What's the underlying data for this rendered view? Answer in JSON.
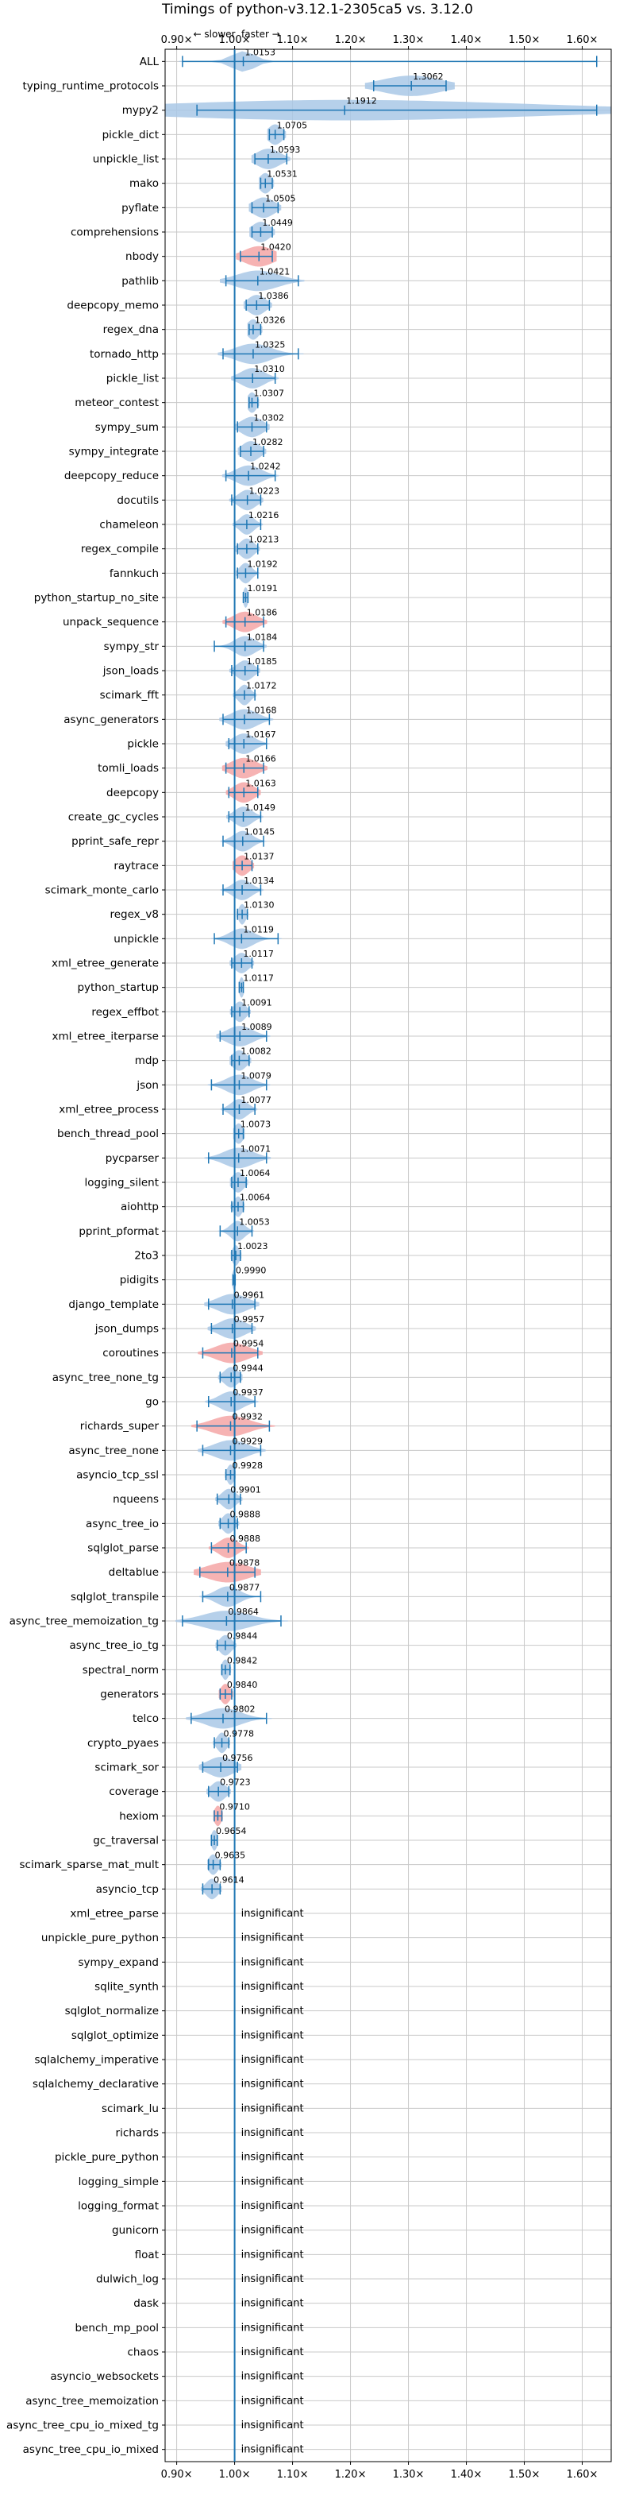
{
  "chart_data": {
    "type": "violin",
    "title": "Timings of python-v3.12.1-2305ca5 vs. 3.12.0",
    "xlabel": "",
    "ylabel": "",
    "xlim": [
      0.88,
      1.65
    ],
    "x_ticks": [
      "0.90×",
      "1.00×",
      "1.10×",
      "1.20×",
      "1.30×",
      "1.40×",
      "1.50×",
      "1.60×"
    ],
    "x_tick_values": [
      0.9,
      1.0,
      1.1,
      1.2,
      1.3,
      1.4,
      1.5,
      1.6
    ],
    "baseline": 1.0,
    "direction_labels": {
      "left": "← slower",
      "right": "faster →"
    },
    "grid": true,
    "colors": {
      "significant": "#a9c8e6",
      "regressed": "#f4a6a6",
      "whisker": "#1f77b4",
      "baseline": "#1f77b4",
      "grid": "#c8c8c8"
    },
    "benchmarks": [
      {
        "name": "ALL",
        "value": "1.0153",
        "mean": 1.015,
        "lo": 0.91,
        "hi": 1.625,
        "spread": 0.02,
        "color": "blue"
      },
      {
        "name": "typing_runtime_protocols",
        "value": "1.3062",
        "mean": 1.305,
        "lo": 1.24,
        "hi": 1.365,
        "spread": 0.05,
        "color": "blue"
      },
      {
        "name": "mypy2",
        "value": "1.1912",
        "mean": 1.19,
        "lo": 0.935,
        "hi": 1.625,
        "spread": 0.32,
        "color": "blue"
      },
      {
        "name": "pickle_dict",
        "value": "1.0705",
        "mean": 1.07,
        "lo": 1.06,
        "hi": 1.085,
        "spread": 0.012,
        "color": "blue"
      },
      {
        "name": "unpickle_list",
        "value": "1.0593",
        "mean": 1.058,
        "lo": 1.035,
        "hi": 1.09,
        "spread": 0.02,
        "color": "blue"
      },
      {
        "name": "mako",
        "value": "1.0531",
        "mean": 1.053,
        "lo": 1.045,
        "hi": 1.065,
        "spread": 0.01,
        "color": "blue"
      },
      {
        "name": "pyflate",
        "value": "1.0505",
        "mean": 1.05,
        "lo": 1.03,
        "hi": 1.075,
        "spread": 0.018,
        "color": "blue"
      },
      {
        "name": "comprehensions",
        "value": "1.0449",
        "mean": 1.045,
        "lo": 1.03,
        "hi": 1.065,
        "spread": 0.015,
        "color": "blue"
      },
      {
        "name": "nbody",
        "value": "1.0420",
        "mean": 1.042,
        "lo": 1.01,
        "hi": 1.065,
        "spread": 0.025,
        "color": "red"
      },
      {
        "name": "pathlib",
        "value": "1.0421",
        "mean": 1.04,
        "lo": 0.985,
        "hi": 1.11,
        "spread": 0.035,
        "color": "blue"
      },
      {
        "name": "deepcopy_memo",
        "value": "1.0386",
        "mean": 1.038,
        "lo": 1.02,
        "hi": 1.06,
        "spread": 0.015,
        "color": "blue"
      },
      {
        "name": "regex_dna",
        "value": "1.0326",
        "mean": 1.032,
        "lo": 1.025,
        "hi": 1.045,
        "spread": 0.01,
        "color": "blue"
      },
      {
        "name": "tornado_http",
        "value": "1.0325",
        "mean": 1.032,
        "lo": 0.98,
        "hi": 1.11,
        "spread": 0.03,
        "color": "blue"
      },
      {
        "name": "pickle_list",
        "value": "1.0310",
        "mean": 1.031,
        "lo": 1.0,
        "hi": 1.07,
        "spread": 0.02,
        "color": "blue"
      },
      {
        "name": "meteor_contest",
        "value": "1.0307",
        "mean": 1.03,
        "lo": 1.025,
        "hi": 1.04,
        "spread": 0.008,
        "color": "blue"
      },
      {
        "name": "sympy_sum",
        "value": "1.0302",
        "mean": 1.03,
        "lo": 1.005,
        "hi": 1.055,
        "spread": 0.018,
        "color": "blue"
      },
      {
        "name": "sympy_integrate",
        "value": "1.0282",
        "mean": 1.028,
        "lo": 1.01,
        "hi": 1.05,
        "spread": 0.015,
        "color": "blue"
      },
      {
        "name": "deepcopy_reduce",
        "value": "1.0242",
        "mean": 1.024,
        "lo": 0.985,
        "hi": 1.07,
        "spread": 0.022,
        "color": "blue"
      },
      {
        "name": "docutils",
        "value": "1.0223",
        "mean": 1.022,
        "lo": 0.995,
        "hi": 1.045,
        "spread": 0.015,
        "color": "blue"
      },
      {
        "name": "chameleon",
        "value": "1.0216",
        "mean": 1.021,
        "lo": 1.0,
        "hi": 1.045,
        "spread": 0.012,
        "color": "blue"
      },
      {
        "name": "regex_compile",
        "value": "1.0213",
        "mean": 1.021,
        "lo": 1.005,
        "hi": 1.04,
        "spread": 0.012,
        "color": "blue"
      },
      {
        "name": "fannkuch",
        "value": "1.0192",
        "mean": 1.019,
        "lo": 1.005,
        "hi": 1.04,
        "spread": 0.01,
        "color": "blue"
      },
      {
        "name": "python_startup_no_site",
        "value": "1.0191",
        "mean": 1.019,
        "lo": 1.015,
        "hi": 1.023,
        "spread": 0.004,
        "color": "blue"
      },
      {
        "name": "unpack_sequence",
        "value": "1.0186",
        "mean": 1.018,
        "lo": 0.985,
        "hi": 1.05,
        "spread": 0.02,
        "color": "red"
      },
      {
        "name": "sympy_str",
        "value": "1.0184",
        "mean": 1.018,
        "lo": 0.965,
        "hi": 1.05,
        "spread": 0.018,
        "color": "blue"
      },
      {
        "name": "json_loads",
        "value": "1.0185",
        "mean": 1.018,
        "lo": 0.995,
        "hi": 1.04,
        "spread": 0.014,
        "color": "blue"
      },
      {
        "name": "scimark_fft",
        "value": "1.0172",
        "mean": 1.017,
        "lo": 1.0,
        "hi": 1.035,
        "spread": 0.01,
        "color": "blue"
      },
      {
        "name": "async_generators",
        "value": "1.0168",
        "mean": 1.017,
        "lo": 0.98,
        "hi": 1.06,
        "spread": 0.022,
        "color": "blue"
      },
      {
        "name": "pickle",
        "value": "1.0167",
        "mean": 1.016,
        "lo": 0.99,
        "hi": 1.055,
        "spread": 0.018,
        "color": "blue"
      },
      {
        "name": "tomli_loads",
        "value": "1.0166",
        "mean": 1.016,
        "lo": 0.985,
        "hi": 1.05,
        "spread": 0.022,
        "color": "red"
      },
      {
        "name": "deepcopy",
        "value": "1.0163",
        "mean": 1.016,
        "lo": 0.99,
        "hi": 1.04,
        "spread": 0.017,
        "color": "red"
      },
      {
        "name": "create_gc_cycles",
        "value": "1.0149",
        "mean": 1.015,
        "lo": 0.99,
        "hi": 1.045,
        "spread": 0.015,
        "color": "blue"
      },
      {
        "name": "pprint_safe_repr",
        "value": "1.0145",
        "mean": 1.014,
        "lo": 0.98,
        "hi": 1.05,
        "spread": 0.016,
        "color": "blue"
      },
      {
        "name": "raytrace",
        "value": "1.0137",
        "mean": 1.013,
        "lo": 1.0,
        "hi": 1.03,
        "spread": 0.012,
        "color": "red"
      },
      {
        "name": "scimark_monte_carlo",
        "value": "1.0134",
        "mean": 1.013,
        "lo": 0.98,
        "hi": 1.045,
        "spread": 0.016,
        "color": "blue"
      },
      {
        "name": "regex_v8",
        "value": "1.0130",
        "mean": 1.013,
        "lo": 1.005,
        "hi": 1.022,
        "spread": 0.006,
        "color": "blue"
      },
      {
        "name": "unpickle",
        "value": "1.0119",
        "mean": 1.012,
        "lo": 0.965,
        "hi": 1.075,
        "spread": 0.02,
        "color": "blue"
      },
      {
        "name": "xml_etree_generate",
        "value": "1.0117",
        "mean": 1.012,
        "lo": 0.995,
        "hi": 1.03,
        "spread": 0.012,
        "color": "blue"
      },
      {
        "name": "python_startup",
        "value": "1.0117",
        "mean": 1.012,
        "lo": 1.008,
        "hi": 1.015,
        "spread": 0.004,
        "color": "blue"
      },
      {
        "name": "regex_effbot",
        "value": "1.0091",
        "mean": 1.009,
        "lo": 0.995,
        "hi": 1.025,
        "spread": 0.01,
        "color": "blue"
      },
      {
        "name": "xml_etree_iterparse",
        "value": "1.0089",
        "mean": 1.009,
        "lo": 0.975,
        "hi": 1.055,
        "spread": 0.022,
        "color": "blue"
      },
      {
        "name": "mdp",
        "value": "1.0082",
        "mean": 1.008,
        "lo": 0.995,
        "hi": 1.025,
        "spread": 0.012,
        "color": "blue"
      },
      {
        "name": "json",
        "value": "1.0079",
        "mean": 1.008,
        "lo": 0.96,
        "hi": 1.055,
        "spread": 0.022,
        "color": "blue"
      },
      {
        "name": "xml_etree_process",
        "value": "1.0077",
        "mean": 1.008,
        "lo": 0.98,
        "hi": 1.035,
        "spread": 0.014,
        "color": "blue"
      },
      {
        "name": "bench_thread_pool",
        "value": "1.0073",
        "mean": 1.007,
        "lo": 1.0,
        "hi": 1.015,
        "spread": 0.008,
        "color": "blue"
      },
      {
        "name": "pycparser",
        "value": "1.0071",
        "mean": 1.007,
        "lo": 0.955,
        "hi": 1.055,
        "spread": 0.025,
        "color": "blue"
      },
      {
        "name": "logging_silent",
        "value": "1.0064",
        "mean": 1.006,
        "lo": 0.995,
        "hi": 1.02,
        "spread": 0.01,
        "color": "blue"
      },
      {
        "name": "aiohttp",
        "value": "1.0064",
        "mean": 1.006,
        "lo": 0.995,
        "hi": 1.015,
        "spread": 0.007,
        "color": "blue"
      },
      {
        "name": "pprint_pformat",
        "value": "1.0053",
        "mean": 1.005,
        "lo": 0.975,
        "hi": 1.03,
        "spread": 0.012,
        "color": "blue"
      },
      {
        "name": "2to3",
        "value": "1.0023",
        "mean": 1.002,
        "lo": 0.995,
        "hi": 1.01,
        "spread": 0.006,
        "color": "blue"
      },
      {
        "name": "pidigits",
        "value": "0.9990",
        "mean": 0.999,
        "lo": 0.997,
        "hi": 1.001,
        "spread": 0.002,
        "color": "blue"
      },
      {
        "name": "django_template",
        "value": "0.9961",
        "mean": 0.996,
        "lo": 0.955,
        "hi": 1.035,
        "spread": 0.025,
        "color": "blue"
      },
      {
        "name": "json_dumps",
        "value": "0.9957",
        "mean": 0.996,
        "lo": 0.96,
        "hi": 1.03,
        "spread": 0.022,
        "color": "blue"
      },
      {
        "name": "coroutines",
        "value": "0.9954",
        "mean": 0.995,
        "lo": 0.945,
        "hi": 1.04,
        "spread": 0.028,
        "color": "red"
      },
      {
        "name": "async_tree_none_tg",
        "value": "0.9944",
        "mean": 0.994,
        "lo": 0.975,
        "hi": 1.01,
        "spread": 0.012,
        "color": "blue"
      },
      {
        "name": "go",
        "value": "0.9937",
        "mean": 0.994,
        "lo": 0.955,
        "hi": 1.035,
        "spread": 0.02,
        "color": "blue"
      },
      {
        "name": "richards_super",
        "value": "0.9932",
        "mean": 0.993,
        "lo": 0.935,
        "hi": 1.06,
        "spread": 0.032,
        "color": "red"
      },
      {
        "name": "async_tree_none",
        "value": "0.9929",
        "mean": 0.993,
        "lo": 0.945,
        "hi": 1.045,
        "spread": 0.028,
        "color": "blue"
      },
      {
        "name": "asyncio_tcp_ssl",
        "value": "0.9928",
        "mean": 0.993,
        "lo": 0.985,
        "hi": 1.0,
        "spread": 0.006,
        "color": "blue"
      },
      {
        "name": "nqueens",
        "value": "0.9901",
        "mean": 0.99,
        "lo": 0.97,
        "hi": 1.01,
        "spread": 0.012,
        "color": "blue"
      },
      {
        "name": "async_tree_io",
        "value": "0.9888",
        "mean": 0.989,
        "lo": 0.975,
        "hi": 1.005,
        "spread": 0.01,
        "color": "blue"
      },
      {
        "name": "sqlglot_parse",
        "value": "0.9888",
        "mean": 0.989,
        "lo": 0.96,
        "hi": 1.02,
        "spread": 0.016,
        "color": "red"
      },
      {
        "name": "deltablue",
        "value": "0.9878",
        "mean": 0.988,
        "lo": 0.94,
        "hi": 1.035,
        "spread": 0.035,
        "color": "red"
      },
      {
        "name": "sqlglot_transpile",
        "value": "0.9877",
        "mean": 0.988,
        "lo": 0.945,
        "hi": 1.045,
        "spread": 0.02,
        "color": "blue"
      },
      {
        "name": "async_tree_memoization_tg",
        "value": "0.9864",
        "mean": 0.986,
        "lo": 0.91,
        "hi": 1.08,
        "spread": 0.04,
        "color": "blue"
      },
      {
        "name": "async_tree_io_tg",
        "value": "0.9844",
        "mean": 0.984,
        "lo": 0.97,
        "hi": 1.0,
        "spread": 0.01,
        "color": "blue"
      },
      {
        "name": "spectral_norm",
        "value": "0.9842",
        "mean": 0.984,
        "lo": 0.978,
        "hi": 0.992,
        "spread": 0.006,
        "color": "blue"
      },
      {
        "name": "generators",
        "value": "0.9840",
        "mean": 0.984,
        "lo": 0.975,
        "hi": 0.995,
        "spread": 0.008,
        "color": "red"
      },
      {
        "name": "telco",
        "value": "0.9802",
        "mean": 0.98,
        "lo": 0.925,
        "hi": 1.055,
        "spread": 0.03,
        "color": "blue"
      },
      {
        "name": "crypto_pyaes",
        "value": "0.9778",
        "mean": 0.978,
        "lo": 0.965,
        "hi": 0.99,
        "spread": 0.008,
        "color": "blue"
      },
      {
        "name": "scimark_sor",
        "value": "0.9756",
        "mean": 0.976,
        "lo": 0.945,
        "hi": 1.005,
        "spread": 0.022,
        "color": "blue"
      },
      {
        "name": "coverage",
        "value": "0.9723",
        "mean": 0.972,
        "lo": 0.955,
        "hi": 0.99,
        "spread": 0.012,
        "color": "blue"
      },
      {
        "name": "hexiom",
        "value": "0.9710",
        "mean": 0.971,
        "lo": 0.965,
        "hi": 0.978,
        "spread": 0.006,
        "color": "red"
      },
      {
        "name": "gc_traversal",
        "value": "0.9654",
        "mean": 0.965,
        "lo": 0.96,
        "hi": 0.97,
        "spread": 0.005,
        "color": "blue"
      },
      {
        "name": "scimark_sparse_mat_mult",
        "value": "0.9635",
        "mean": 0.963,
        "lo": 0.955,
        "hi": 0.975,
        "spread": 0.008,
        "color": "blue"
      },
      {
        "name": "asyncio_tcp",
        "value": "0.9614",
        "mean": 0.961,
        "lo": 0.945,
        "hi": 0.975,
        "spread": 0.01,
        "color": "blue"
      },
      {
        "name": "xml_etree_parse",
        "value": "insignificant",
        "insignificant": true
      },
      {
        "name": "unpickle_pure_python",
        "value": "insignificant",
        "insignificant": true
      },
      {
        "name": "sympy_expand",
        "value": "insignificant",
        "insignificant": true
      },
      {
        "name": "sqlite_synth",
        "value": "insignificant",
        "insignificant": true
      },
      {
        "name": "sqlglot_normalize",
        "value": "insignificant",
        "insignificant": true
      },
      {
        "name": "sqlglot_optimize",
        "value": "insignificant",
        "insignificant": true
      },
      {
        "name": "sqlalchemy_imperative",
        "value": "insignificant",
        "insignificant": true
      },
      {
        "name": "sqlalchemy_declarative",
        "value": "insignificant",
        "insignificant": true
      },
      {
        "name": "scimark_lu",
        "value": "insignificant",
        "insignificant": true
      },
      {
        "name": "richards",
        "value": "insignificant",
        "insignificant": true
      },
      {
        "name": "pickle_pure_python",
        "value": "insignificant",
        "insignificant": true
      },
      {
        "name": "logging_simple",
        "value": "insignificant",
        "insignificant": true
      },
      {
        "name": "logging_format",
        "value": "insignificant",
        "insignificant": true
      },
      {
        "name": "gunicorn",
        "value": "insignificant",
        "insignificant": true
      },
      {
        "name": "float",
        "value": "insignificant",
        "insignificant": true
      },
      {
        "name": "dulwich_log",
        "value": "insignificant",
        "insignificant": true
      },
      {
        "name": "dask",
        "value": "insignificant",
        "insignificant": true
      },
      {
        "name": "bench_mp_pool",
        "value": "insignificant",
        "insignificant": true
      },
      {
        "name": "chaos",
        "value": "insignificant",
        "insignificant": true
      },
      {
        "name": "asyncio_websockets",
        "value": "insignificant",
        "insignificant": true
      },
      {
        "name": "async_tree_memoization",
        "value": "insignificant",
        "insignificant": true
      },
      {
        "name": "async_tree_cpu_io_mixed_tg",
        "value": "insignificant",
        "insignificant": true
      },
      {
        "name": "async_tree_cpu_io_mixed",
        "value": "insignificant",
        "insignificant": true
      }
    ]
  }
}
